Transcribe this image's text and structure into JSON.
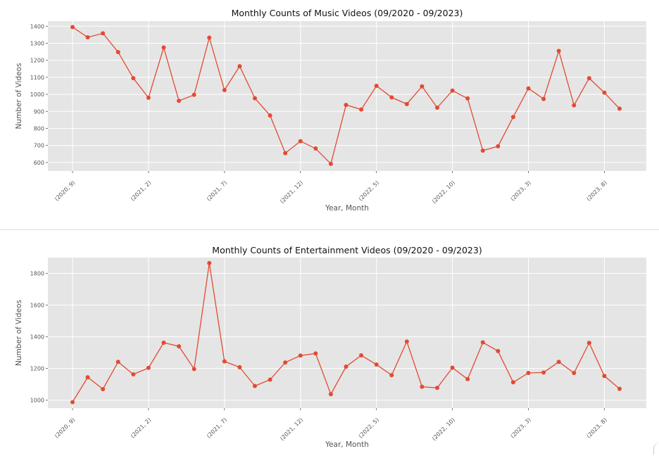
{
  "charts": [
    {
      "type": "line",
      "title": "Monthly Counts of Music Videos (09/2020 - 09/2023)",
      "xlabel": "Year, Month",
      "ylabel": "Number of Videos",
      "line_color": "#E24A33",
      "background_color": "#E5E5E5",
      "grid": true,
      "ylim": [
        550,
        1430
      ],
      "yticks": [
        600,
        700,
        800,
        900,
        1000,
        1100,
        1200,
        1300,
        1400
      ],
      "x_tick_labels": [
        "(2020, 9)",
        "(2021, 2)",
        "(2021, 7)",
        "(2021, 12)",
        "(2022, 5)",
        "(2022, 10)",
        "(2023, 3)",
        "(2023, 8)"
      ],
      "x_tick_index": [
        0,
        5,
        10,
        15,
        20,
        25,
        30,
        35
      ],
      "values": [
        1395,
        1335,
        1358,
        1248,
        1095,
        980,
        1275,
        962,
        997,
        1333,
        1025,
        1165,
        977,
        876,
        655,
        725,
        682,
        592,
        938,
        911,
        1050,
        982,
        943,
        1047,
        922,
        1022,
        976,
        670,
        695,
        867,
        1035,
        973,
        1255,
        936,
        1095,
        1010,
        916
      ]
    },
    {
      "type": "line",
      "title": "Monthly Counts of Entertainment Videos (09/2020 - 09/2023)",
      "xlabel": "Year, Month",
      "ylabel": "Number of Videos",
      "line_color": "#E24A33",
      "background_color": "#E5E5E5",
      "grid": true,
      "ylim": [
        950,
        1900
      ],
      "yticks": [
        1000,
        1200,
        1400,
        1600,
        1800
      ],
      "x_tick_labels": [
        "(2020, 9)",
        "(2021, 2)",
        "(2021, 7)",
        "(2021, 12)",
        "(2022, 5)",
        "(2022, 10)",
        "(2023, 3)",
        "(2023, 8)"
      ],
      "x_tick_index": [
        0,
        5,
        10,
        15,
        20,
        25,
        30,
        35
      ],
      "values": [
        988,
        1145,
        1070,
        1242,
        1163,
        1204,
        1363,
        1340,
        1197,
        1865,
        1245,
        1208,
        1090,
        1130,
        1238,
        1282,
        1295,
        1038,
        1212,
        1283,
        1225,
        1158,
        1370,
        1085,
        1078,
        1205,
        1133,
        1365,
        1310,
        1113,
        1172,
        1175,
        1242,
        1172,
        1362,
        1153,
        1072
      ]
    }
  ]
}
